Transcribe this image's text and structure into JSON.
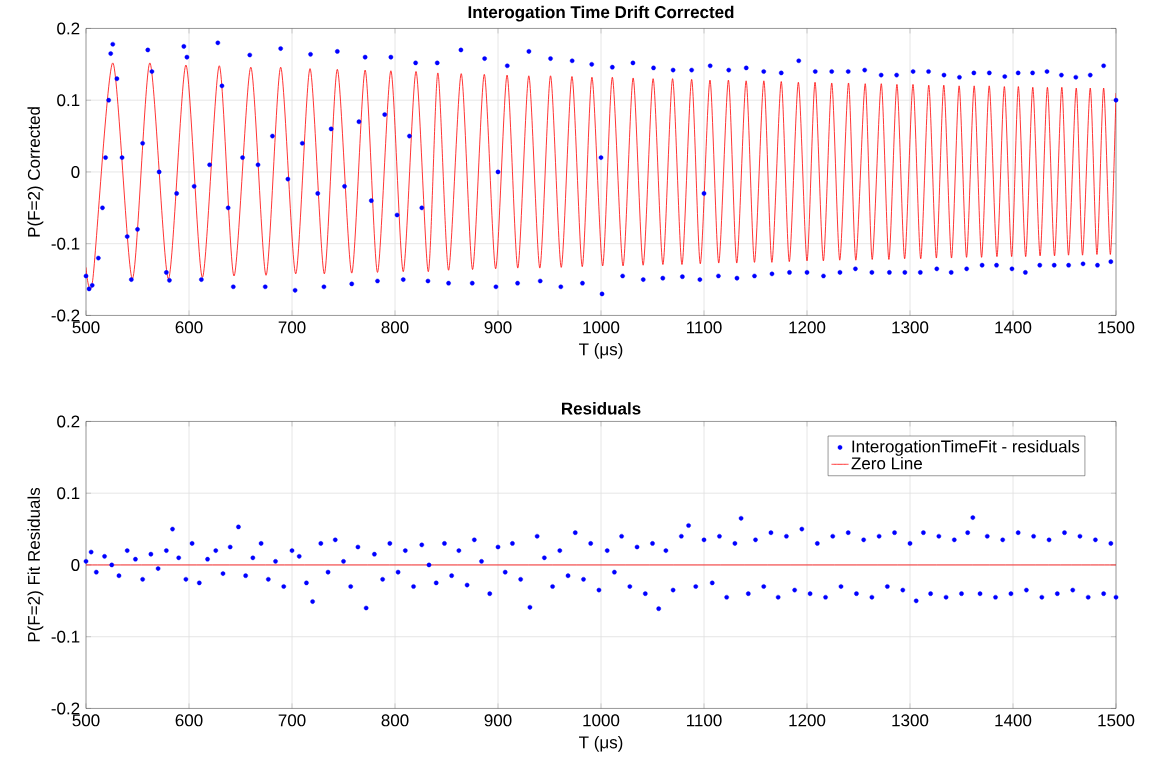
{
  "chart_data": [
    {
      "type": "scatter",
      "title": "Interogation Time Drift Corrected",
      "xlabel": "T (μs)",
      "ylabel": "P(F=2) Corrected",
      "xlim": [
        500,
        1500
      ],
      "ylim": [
        -0.2,
        0.2
      ],
      "xticks": [
        500,
        600,
        700,
        800,
        900,
        1000,
        1100,
        1200,
        1300,
        1400,
        1500
      ],
      "yticks": [
        -0.2,
        -0.1,
        0,
        0.1,
        0.2
      ],
      "grid": true,
      "marker": "circle",
      "series": [
        {
          "color": "#0000ff",
          "x": [
            500,
            503,
            506,
            512,
            516,
            519,
            522,
            524,
            526,
            530,
            535,
            540,
            544,
            550,
            555,
            560,
            564,
            571,
            578,
            581,
            588,
            595,
            598,
            605,
            612,
            620,
            628,
            632,
            638,
            643,
            652,
            659,
            667,
            674,
            681,
            689,
            696,
            703,
            710,
            718,
            725,
            731,
            738,
            744,
            751,
            758,
            765,
            771,
            777,
            783,
            790,
            796,
            802,
            808,
            814,
            820,
            826,
            832,
            841,
            852,
            864,
            875,
            887,
            898,
            900,
            909,
            919,
            930,
            941,
            951,
            961,
            972,
            982,
            991,
            1000,
            1001,
            1011,
            1021,
            1031,
            1041,
            1051,
            1060,
            1070,
            1079,
            1088,
            1096,
            1100,
            1106,
            1114,
            1124,
            1132,
            1141,
            1149,
            1158,
            1166,
            1175,
            1183,
            1192,
            1200,
            1208,
            1216,
            1224,
            1232,
            1240,
            1247,
            1256,
            1263,
            1272,
            1280,
            1287,
            1295,
            1303,
            1310,
            1318,
            1326,
            1333,
            1340,
            1348,
            1355,
            1362,
            1370,
            1377,
            1384,
            1392,
            1399,
            1405,
            1412,
            1419,
            1426,
            1433,
            1440,
            1447,
            1454,
            1461,
            1468,
            1475,
            1482,
            1488,
            1495,
            1500
          ],
          "values": [
            -0.145,
            -0.163,
            -0.158,
            -0.12,
            -0.05,
            0.02,
            0.1,
            0.165,
            0.178,
            0.13,
            0.02,
            -0.09,
            -0.15,
            -0.08,
            0.04,
            0.17,
            0.14,
            0.0,
            -0.14,
            -0.151,
            -0.03,
            0.175,
            0.16,
            -0.02,
            -0.15,
            0.01,
            0.18,
            0.12,
            -0.05,
            -0.16,
            0.02,
            0.163,
            0.01,
            -0.16,
            0.05,
            0.172,
            -0.01,
            -0.165,
            0.04,
            0.164,
            -0.03,
            -0.16,
            0.06,
            0.168,
            -0.02,
            -0.156,
            0.07,
            0.16,
            -0.04,
            -0.152,
            0.08,
            0.16,
            -0.06,
            -0.15,
            0.05,
            0.152,
            -0.05,
            -0.152,
            0.152,
            -0.155,
            0.17,
            -0.155,
            0.158,
            -0.16,
            0.0,
            0.148,
            -0.155,
            0.168,
            -0.152,
            0.158,
            -0.16,
            0.155,
            -0.155,
            0.15,
            0.02,
            -0.17,
            0.146,
            -0.145,
            0.152,
            -0.15,
            0.145,
            -0.148,
            0.142,
            -0.146,
            0.142,
            -0.15,
            -0.03,
            0.148,
            -0.145,
            0.142,
            -0.148,
            0.145,
            -0.145,
            0.14,
            -0.142,
            0.138,
            -0.14,
            0.155,
            -0.14,
            0.14,
            -0.145,
            0.14,
            -0.14,
            0.14,
            -0.135,
            0.142,
            -0.14,
            0.135,
            -0.14,
            0.135,
            -0.14,
            0.14,
            -0.14,
            0.14,
            -0.135,
            0.135,
            -0.14,
            0.132,
            -0.135,
            0.138,
            -0.13,
            0.138,
            -0.13,
            0.133,
            -0.135,
            0.138,
            -0.14,
            0.138,
            -0.13,
            0.14,
            -0.13,
            0.135,
            -0.13,
            0.132,
            -0.128,
            0.135,
            -0.13,
            0.148,
            -0.125,
            0.1
          ]
        },
        {
          "type": "line",
          "marker": "none",
          "color": "#ff0000",
          "x": [
            500,
            506.5,
            526,
            545,
            562,
            580,
            597,
            613,
            629.4,
            643.7,
            660,
            674.8,
            689,
            703.6,
            717.5,
            731.4,
            744,
            758,
            771,
            783,
            796,
            808,
            820.4,
            832.3,
            841.6,
            852,
            864.3,
            875.3,
            886.7,
            897.7,
            908.8,
            919.2,
            929.9,
            940.6,
            951,
            961.4,
            971.8,
            981.8,
            991.2,
            1001.6,
            1011,
            1021.4,
            1031.2,
            1040.9,
            1050.6,
            1060.1,
            1069.5,
            1078.6,
            1088,
            1096.4,
            1105.8,
            1114.3,
            1123.7,
            1131.8,
            1140.9,
            1149,
            1158.1,
            1165.9,
            1175,
            1182.8,
            1191.6,
            1200,
            1207.8,
            1215.9,
            1224,
            1231.8,
            1240.3,
            1247.4,
            1256.5,
            1263.3,
            1272.1,
            1279.5,
            1287.3,
            1294.8,
            1302.9,
            1310.4,
            1318.2,
            1325.6,
            1332.8,
            1340.3,
            1347.7,
            1354.9,
            1362.3,
            1369.5,
            1376.9,
            1384.4,
            1391.6,
            1398.7,
            1405.2,
            1412.3,
            1419.2,
            1426.3,
            1433.4,
            1440.3,
            1447.4,
            1453.9,
            1461.4,
            1467.5,
            1475,
            1481.5,
            1488,
            1494.5,
            1500
          ],
          "values": [
            -0.133,
            -0.151,
            0.152,
            -0.149,
            0.152,
            -0.149,
            0.149,
            -0.147,
            0.148,
            -0.145,
            0.146,
            -0.144,
            0.146,
            -0.142,
            0.144,
            -0.142,
            0.143,
            -0.141,
            0.142,
            -0.14,
            0.141,
            -0.139,
            0.14,
            -0.139,
            0.138,
            -0.137,
            0.137,
            -0.136,
            0.136,
            -0.135,
            0.135,
            -0.134,
            0.134,
            -0.134,
            0.134,
            -0.133,
            0.133,
            -0.132,
            0.132,
            -0.131,
            0.132,
            -0.131,
            0.131,
            -0.13,
            0.13,
            -0.129,
            0.13,
            -0.129,
            0.129,
            -0.128,
            0.128,
            -0.127,
            0.128,
            -0.127,
            0.127,
            -0.126,
            0.127,
            -0.126,
            0.126,
            -0.125,
            0.125,
            -0.124,
            0.125,
            -0.124,
            0.124,
            -0.123,
            0.124,
            -0.123,
            0.123,
            -0.122,
            0.123,
            -0.122,
            0.122,
            -0.121,
            0.122,
            -0.121,
            0.121,
            -0.12,
            0.121,
            -0.12,
            0.12,
            -0.119,
            0.12,
            -0.119,
            0.12,
            -0.118,
            0.119,
            -0.118,
            0.119,
            -0.118,
            0.118,
            -0.117,
            0.118,
            -0.117,
            0.118,
            -0.116,
            0.117,
            -0.116,
            0.117,
            -0.115,
            0.117,
            -0.115,
            0.11
          ]
        }
      ]
    },
    {
      "type": "scatter",
      "title": "Residuals",
      "xlabel": "T (μs)",
      "ylabel": "P(F=2) Fit Residuals",
      "xlim": [
        500,
        1500
      ],
      "ylim": [
        -0.2,
        0.2
      ],
      "xticks": [
        500,
        600,
        700,
        800,
        900,
        1000,
        1100,
        1200,
        1300,
        1400,
        1500
      ],
      "yticks": [
        -0.2,
        -0.1,
        0,
        0.1,
        0.2
      ],
      "grid": true,
      "legend": "top right",
      "marker": "circle",
      "series": [
        {
          "name": "InterogationTimeFit - residuals",
          "color": "#0000ff",
          "x": [
            500,
            505,
            510,
            518,
            525,
            532,
            540,
            548,
            555,
            563,
            570,
            578,
            584,
            590,
            597,
            603,
            610,
            618,
            626,
            633,
            640,
            648,
            655,
            662,
            670,
            677,
            684,
            692,
            700,
            707,
            714,
            720,
            728,
            735,
            742,
            750,
            757,
            764,
            772,
            780,
            788,
            795,
            803,
            810,
            818,
            826,
            833,
            840,
            848,
            855,
            862,
            870,
            877,
            884,
            892,
            900,
            907,
            914,
            922,
            931,
            938,
            945,
            953,
            960,
            968,
            975,
            983,
            990,
            998,
            1006,
            1013,
            1020,
            1028,
            1035,
            1043,
            1050,
            1056,
            1063,
            1070,
            1078,
            1085,
            1092,
            1100,
            1108,
            1115,
            1122,
            1130,
            1136,
            1143,
            1150,
            1158,
            1165,
            1172,
            1180,
            1188,
            1195,
            1203,
            1210,
            1218,
            1225,
            1233,
            1240,
            1248,
            1255,
            1263,
            1270,
            1278,
            1285,
            1293,
            1300,
            1306,
            1313,
            1320,
            1328,
            1335,
            1343,
            1350,
            1356,
            1361,
            1368,
            1375,
            1383,
            1390,
            1398,
            1405,
            1413,
            1420,
            1428,
            1435,
            1443,
            1450,
            1458,
            1465,
            1473,
            1480,
            1488,
            1495,
            1500
          ],
          "values": [
            0.005,
            0.018,
            -0.01,
            0.012,
            0.0,
            -0.015,
            0.02,
            0.008,
            -0.02,
            0.015,
            -0.005,
            0.02,
            0.05,
            0.01,
            -0.02,
            0.03,
            -0.025,
            0.008,
            0.02,
            -0.012,
            0.025,
            0.053,
            -0.015,
            0.01,
            0.03,
            -0.02,
            0.005,
            -0.03,
            0.02,
            0.012,
            -0.025,
            -0.051,
            0.03,
            -0.01,
            0.035,
            0.005,
            -0.03,
            0.025,
            -0.06,
            0.015,
            -0.02,
            0.03,
            -0.01,
            0.02,
            -0.03,
            0.028,
            0.0,
            -0.025,
            0.03,
            -0.015,
            0.02,
            -0.028,
            0.035,
            0.005,
            -0.04,
            0.025,
            -0.01,
            0.03,
            -0.02,
            -0.059,
            0.04,
            0.01,
            -0.03,
            0.02,
            -0.015,
            0.045,
            -0.02,
            0.03,
            -0.035,
            0.02,
            -0.01,
            0.04,
            -0.03,
            0.025,
            -0.04,
            0.03,
            -0.061,
            0.02,
            -0.035,
            0.04,
            0.055,
            -0.03,
            0.035,
            -0.025,
            0.04,
            -0.045,
            0.03,
            0.065,
            -0.04,
            0.035,
            -0.03,
            0.045,
            -0.045,
            0.04,
            -0.035,
            0.05,
            -0.04,
            0.03,
            -0.045,
            0.04,
            -0.03,
            0.045,
            -0.04,
            0.035,
            -0.045,
            0.04,
            -0.03,
            0.045,
            -0.035,
            0.03,
            -0.05,
            0.045,
            -0.04,
            0.04,
            -0.045,
            0.035,
            -0.04,
            0.045,
            0.066,
            -0.04,
            0.04,
            -0.045,
            0.035,
            -0.04,
            0.045,
            -0.035,
            0.04,
            -0.045,
            0.035,
            -0.04,
            0.045,
            -0.035,
            0.04,
            -0.045,
            0.035,
            -0.04,
            0.03,
            -0.045
          ]
        },
        {
          "type": "line",
          "marker": "none",
          "name": "Zero Line",
          "color": "#ff0000",
          "x": [
            500,
            1500
          ],
          "values": [
            0,
            0
          ]
        }
      ]
    }
  ]
}
